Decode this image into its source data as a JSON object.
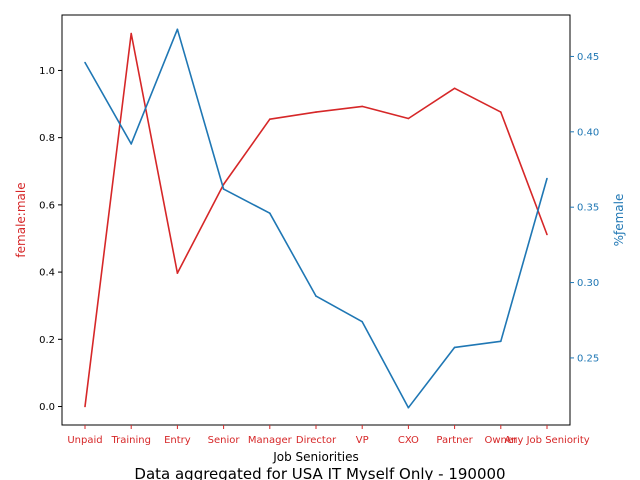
{
  "chart_data": {
    "type": "line",
    "title": "Data aggregated for USA IT Myself Only - 190000",
    "xlabel": "Job Seniorities",
    "categories": [
      "Unpaid",
      "Training",
      "Entry",
      "Senior",
      "Manager",
      "Director",
      "VP",
      "CXO",
      "Partner",
      "Owner",
      "Any Job Seniority"
    ],
    "left_axis": {
      "label": "female:male",
      "ylim": [
        -0.055,
        1.165
      ],
      "ticks": [
        "0.0",
        "0.2",
        "0.4",
        "0.6",
        "0.8",
        "1.0"
      ],
      "tick_values": [
        0.0,
        0.2,
        0.4,
        0.6,
        0.8,
        1.0
      ]
    },
    "right_axis": {
      "label": "%ƒemale",
      "ylim": [
        0.2055,
        0.4775
      ],
      "ticks": [
        "0.25",
        "0.30",
        "0.35",
        "0.40",
        "0.45"
      ],
      "tick_values": [
        0.25,
        0.3,
        0.35,
        0.4,
        0.45
      ]
    },
    "series": [
      {
        "axis": "left",
        "color": "#d62728",
        "values": [
          0.0,
          1.11,
          0.397,
          0.661,
          0.855,
          0.876,
          0.893,
          0.857,
          0.947,
          0.876,
          0.512
        ]
      },
      {
        "axis": "right",
        "color": "#1f77b4",
        "values": [
          0.446,
          0.392,
          0.468,
          0.362,
          0.346,
          0.291,
          0.274,
          0.217,
          0.257,
          0.261,
          0.369
        ]
      }
    ],
    "grid": false,
    "legend": "none"
  }
}
